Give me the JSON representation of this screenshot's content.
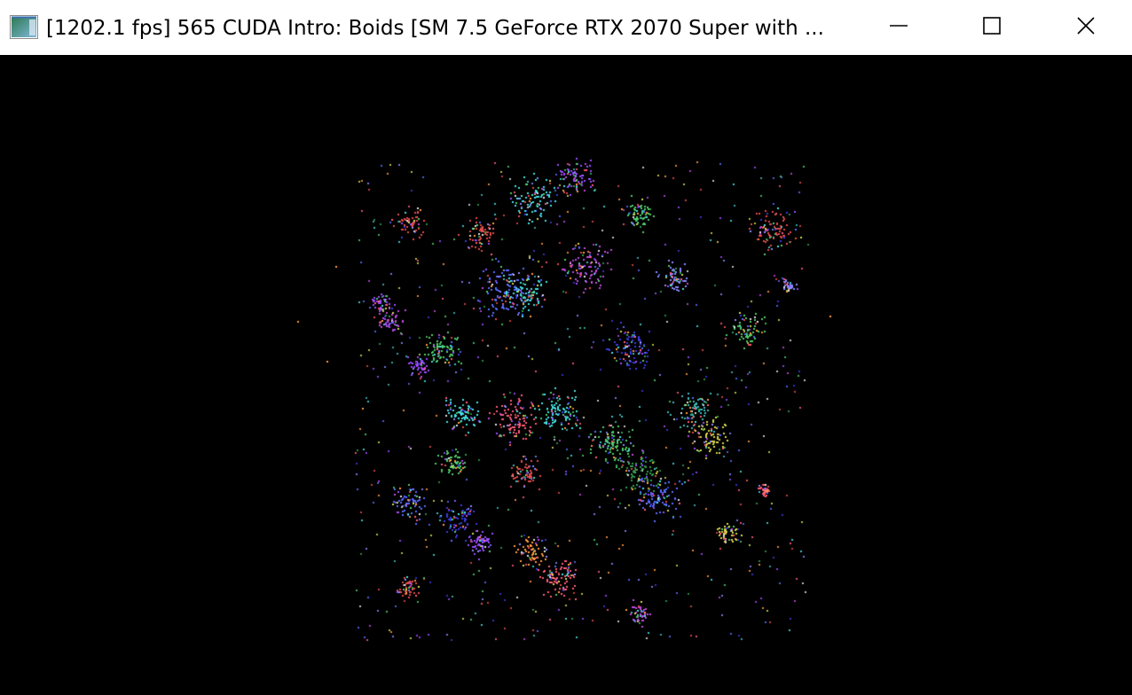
{
  "window": {
    "title": "[1202.1 fps] 565 CUDA Intro: Boids [SM 7.5 GeForce RTX 2070 Super with ...",
    "controls": {
      "minimize_icon": "minimize-icon",
      "maximize_icon": "maximize-icon",
      "close_icon": "close-icon"
    }
  },
  "app_icon": "app-window-icon",
  "colors": {
    "titlebar_bg": "#ffffff",
    "canvas_bg": "#000000",
    "title_text": "#000000",
    "boid_palette": [
      "#e24a4a",
      "#ff5c7a",
      "#5b6cff",
      "#3b3bdc",
      "#9a4cff",
      "#c04ae0",
      "#44e0e0",
      "#3fb8b8",
      "#4ecb6a",
      "#2f9e4f",
      "#d6d64a",
      "#ff9a3c",
      "#8a8aff",
      "#e0e0e0"
    ]
  }
}
